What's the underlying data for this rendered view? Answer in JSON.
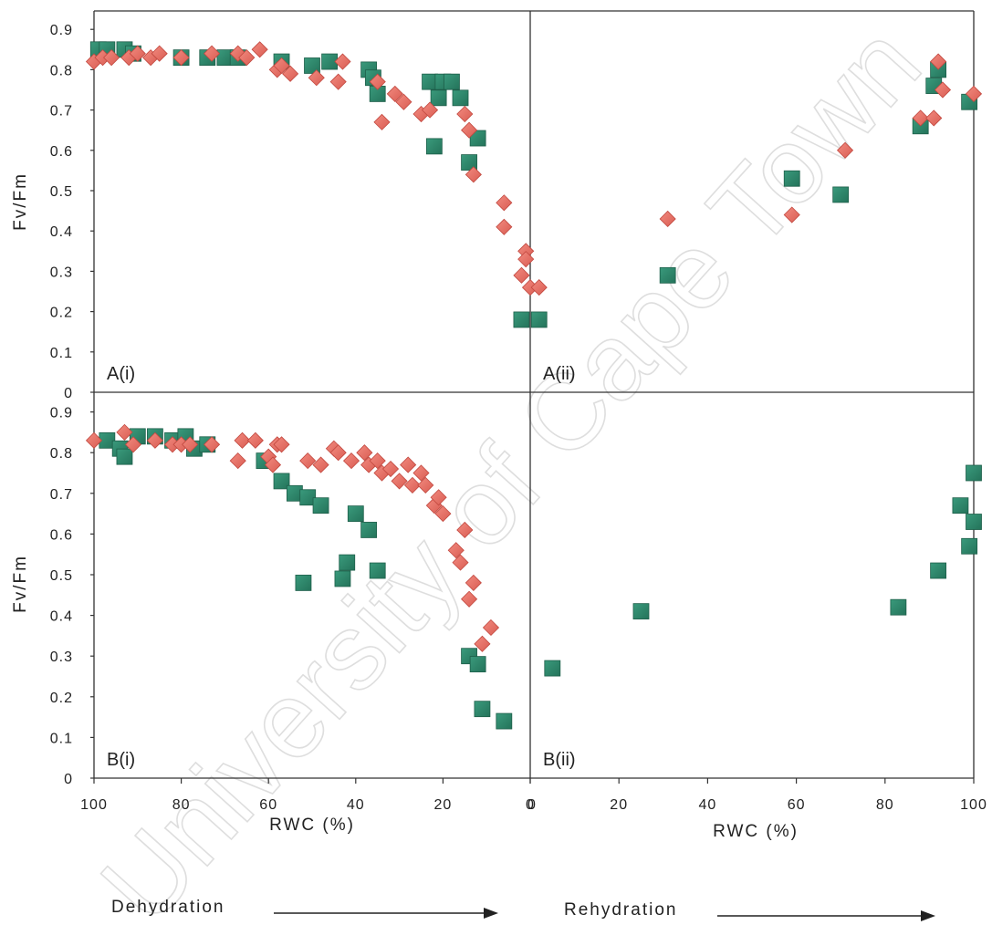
{
  "chart_data": {
    "type": "scatter",
    "watermark": "University of Cape Town",
    "ylabel": "Fv/Fm",
    "xlabel": "RWC (%)",
    "yticks": [
      "0",
      "0.1",
      "0.2",
      "0.3",
      "0.4",
      "0.5",
      "0.6",
      "0.7",
      "0.8",
      "0.9"
    ],
    "ylim": [
      0,
      0.9
    ],
    "dehydration_xticks": [
      "100",
      "80",
      "60",
      "40",
      "20",
      "0"
    ],
    "rehydration_xticks": [
      "0",
      "20",
      "40",
      "60",
      "80",
      "100"
    ],
    "phases": {
      "dehydration": "Dehydration",
      "rehydration": "Rehydration"
    },
    "marker_colors": {
      "square": "#2e8b6e",
      "diamond": "#e8736a"
    },
    "panels": [
      {
        "label": "A(i)",
        "phase": "dehydration",
        "xlim": [
          100,
          0
        ],
        "series": [
          {
            "marker": "square",
            "points": [
              [
                99,
                0.85
              ],
              [
                97,
                0.85
              ],
              [
                93,
                0.85
              ],
              [
                91,
                0.84
              ],
              [
                80,
                0.83
              ],
              [
                74,
                0.83
              ],
              [
                70,
                0.83
              ],
              [
                67,
                0.83
              ],
              [
                57,
                0.82
              ],
              [
                50,
                0.81
              ],
              [
                46,
                0.82
              ],
              [
                37,
                0.8
              ],
              [
                36,
                0.78
              ],
              [
                35,
                0.74
              ],
              [
                23,
                0.77
              ],
              [
                21,
                0.73
              ],
              [
                20,
                0.77
              ],
              [
                18,
                0.77
              ],
              [
                16,
                0.73
              ],
              [
                22,
                0.61
              ],
              [
                14,
                0.57
              ],
              [
                12,
                0.63
              ],
              [
                2,
                0.18
              ]
            ]
          },
          {
            "marker": "diamond",
            "points": [
              [
                100,
                0.82
              ],
              [
                98,
                0.83
              ],
              [
                96,
                0.83
              ],
              [
                92,
                0.83
              ],
              [
                90,
                0.84
              ],
              [
                87,
                0.83
              ],
              [
                85,
                0.84
              ],
              [
                80,
                0.83
              ],
              [
                73,
                0.84
              ],
              [
                67,
                0.84
              ],
              [
                65,
                0.83
              ],
              [
                62,
                0.85
              ],
              [
                58,
                0.8
              ],
              [
                57,
                0.81
              ],
              [
                55,
                0.79
              ],
              [
                49,
                0.78
              ],
              [
                44,
                0.77
              ],
              [
                43,
                0.82
              ],
              [
                35,
                0.77
              ],
              [
                34,
                0.67
              ],
              [
                31,
                0.74
              ],
              [
                29,
                0.72
              ],
              [
                25,
                0.69
              ],
              [
                23,
                0.7
              ],
              [
                15,
                0.69
              ],
              [
                14,
                0.65
              ],
              [
                13,
                0.54
              ],
              [
                6,
                0.47
              ],
              [
                6,
                0.41
              ],
              [
                1,
                0.35
              ],
              [
                1,
                0.33
              ],
              [
                2,
                0.29
              ],
              [
                0,
                0.26
              ]
            ]
          }
        ]
      },
      {
        "label": "A(ii)",
        "phase": "rehydration",
        "xlim": [
          0,
          100
        ],
        "series": [
          {
            "marker": "square",
            "points": [
              [
                2,
                0.18
              ],
              [
                31,
                0.29
              ],
              [
                59,
                0.53
              ],
              [
                70,
                0.49
              ],
              [
                88,
                0.66
              ],
              [
                91,
                0.76
              ],
              [
                92,
                0.8
              ],
              [
                99,
                0.72
              ]
            ]
          },
          {
            "marker": "diamond",
            "points": [
              [
                2,
                0.26
              ],
              [
                31,
                0.43
              ],
              [
                59,
                0.44
              ],
              [
                71,
                0.6
              ],
              [
                88,
                0.68
              ],
              [
                91,
                0.68
              ],
              [
                92,
                0.82
              ],
              [
                93,
                0.75
              ],
              [
                100,
                0.74
              ]
            ]
          }
        ]
      },
      {
        "label": "B(i)",
        "phase": "dehydration",
        "xlim": [
          100,
          0
        ],
        "series": [
          {
            "marker": "square",
            "points": [
              [
                97,
                0.83
              ],
              [
                94,
                0.81
              ],
              [
                93,
                0.79
              ],
              [
                90,
                0.84
              ],
              [
                86,
                0.84
              ],
              [
                82,
                0.83
              ],
              [
                79,
                0.84
              ],
              [
                77,
                0.81
              ],
              [
                74,
                0.82
              ],
              [
                61,
                0.78
              ],
              [
                57,
                0.73
              ],
              [
                54,
                0.7
              ],
              [
                51,
                0.69
              ],
              [
                48,
                0.67
              ],
              [
                52,
                0.48
              ],
              [
                40,
                0.65
              ],
              [
                37,
                0.61
              ],
              [
                35,
                0.51
              ],
              [
                42,
                0.53
              ],
              [
                43,
                0.49
              ],
              [
                14,
                0.3
              ],
              [
                12,
                0.28
              ],
              [
                11,
                0.17
              ],
              [
                6,
                0.14
              ]
            ]
          },
          {
            "marker": "diamond",
            "points": [
              [
                100,
                0.83
              ],
              [
                93,
                0.85
              ],
              [
                91,
                0.82
              ],
              [
                86,
                0.83
              ],
              [
                82,
                0.82
              ],
              [
                80,
                0.82
              ],
              [
                78,
                0.82
              ],
              [
                73,
                0.82
              ],
              [
                67,
                0.78
              ],
              [
                66,
                0.83
              ],
              [
                63,
                0.83
              ],
              [
                60,
                0.79
              ],
              [
                59,
                0.77
              ],
              [
                58,
                0.82
              ],
              [
                57,
                0.82
              ],
              [
                51,
                0.78
              ],
              [
                48,
                0.77
              ],
              [
                45,
                0.81
              ],
              [
                44,
                0.8
              ],
              [
                41,
                0.78
              ],
              [
                38,
                0.8
              ],
              [
                37,
                0.77
              ],
              [
                35,
                0.78
              ],
              [
                34,
                0.75
              ],
              [
                32,
                0.76
              ],
              [
                30,
                0.73
              ],
              [
                28,
                0.77
              ],
              [
                27,
                0.72
              ],
              [
                25,
                0.75
              ],
              [
                24,
                0.72
              ],
              [
                22,
                0.67
              ],
              [
                21,
                0.69
              ],
              [
                20,
                0.65
              ],
              [
                17,
                0.56
              ],
              [
                16,
                0.53
              ],
              [
                15,
                0.61
              ],
              [
                14,
                0.44
              ],
              [
                13,
                0.48
              ],
              [
                11,
                0.33
              ],
              [
                9,
                0.37
              ]
            ]
          }
        ]
      },
      {
        "label": "B(ii)",
        "phase": "rehydration",
        "xlim": [
          0,
          100
        ],
        "series": [
          {
            "marker": "square",
            "points": [
              [
                5,
                0.27
              ],
              [
                25,
                0.41
              ],
              [
                83,
                0.42
              ],
              [
                92,
                0.51
              ],
              [
                97,
                0.67
              ],
              [
                99,
                0.57
              ],
              [
                100,
                0.63
              ],
              [
                100,
                0.75
              ]
            ]
          }
        ]
      }
    ]
  }
}
